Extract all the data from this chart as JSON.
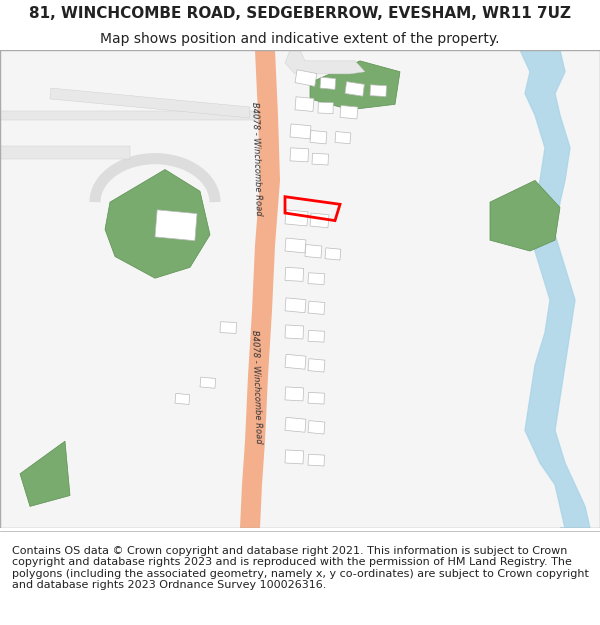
{
  "title": "81, WINCHCOMBE ROAD, SEDGEBERROW, EVESHAM, WR11 7UZ",
  "subtitle": "Map shows position and indicative extent of the property.",
  "footer": "Contains OS data © Crown copyright and database right 2021. This information is subject to Crown copyright and database rights 2023 and is reproduced with the permission of HM Land Registry. The polygons (including the associated geometry, namely x, y co-ordinates) are subject to Crown copyright and database rights 2023 Ordnance Survey 100026316.",
  "bg_color": "#ffffff",
  "map_bg": "#f8f8f8",
  "road_color": "#f4a882",
  "road_outline": "#e8c4b0",
  "road_label": "B4078 - Winchcombe Road",
  "river_color": "#a8d4e8",
  "green_area1_color": "#7aab6e",
  "green_area2_color": "#7aab6e",
  "building_color": "#ffffff",
  "building_outline": "#cccccc",
  "highlight_color": "#ff0000",
  "street_color": "#e8e8e8",
  "street_outline": "#cccccc",
  "title_fontsize": 11,
  "subtitle_fontsize": 10,
  "footer_fontsize": 8
}
